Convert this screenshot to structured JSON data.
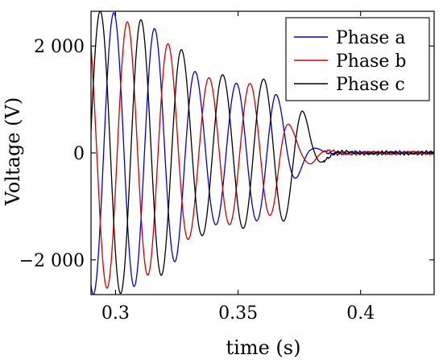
{
  "chart_data": {
    "type": "line",
    "xlabel": "time (s)",
    "ylabel": "Voltage (V)",
    "xlim": [
      0.29,
      0.43
    ],
    "ylim": [
      -2650,
      2650
    ],
    "xticks": [
      0.3,
      0.35,
      0.4
    ],
    "xtick_labels": [
      "0.3",
      "0.35",
      "0.4"
    ],
    "yticks": [
      -2000,
      0,
      2000
    ],
    "ytick_labels": [
      "−2 000",
      "0",
      "2 000"
    ],
    "grid": false,
    "legend_position": "top-right",
    "frequency_hz": 60,
    "series": [
      {
        "name": "Phase a",
        "color": "#0000cc",
        "phase_deg": 105,
        "envelope_t": [
          0.29,
          0.3,
          0.305,
          0.31,
          0.315,
          0.32,
          0.325,
          0.33,
          0.335,
          0.34,
          0.345,
          0.35,
          0.355,
          0.36,
          0.365,
          0.368,
          0.372,
          0.376,
          0.38,
          0.385,
          0.39,
          0.4,
          0.43
        ],
        "envelope_a": [
          2650,
          2620,
          2550,
          2450,
          2350,
          2220,
          2000,
          1650,
          1400,
          1350,
          1320,
          1300,
          1280,
          1260,
          1150,
          900,
          600,
          320,
          120,
          40,
          20,
          15,
          15
        ]
      },
      {
        "name": "Phase b",
        "color": "#cc0000",
        "phase_deg": -15,
        "envelope_t": [
          0.29,
          0.3,
          0.305,
          0.31,
          0.315,
          0.32,
          0.325,
          0.33,
          0.335,
          0.34,
          0.345,
          0.35,
          0.355,
          0.36,
          0.365,
          0.368,
          0.372,
          0.376,
          0.38,
          0.385,
          0.39,
          0.4,
          0.43
        ],
        "envelope_a": [
          2550,
          2520,
          2450,
          2350,
          2250,
          2100,
          1900,
          1600,
          1450,
          1380,
          1350,
          1320,
          1300,
          1280,
          1100,
          800,
          450,
          250,
          200,
          60,
          25,
          15,
          15
        ]
      },
      {
        "name": "Phase c",
        "color": "#000000",
        "phase_deg": -135,
        "envelope_t": [
          0.29,
          0.3,
          0.305,
          0.31,
          0.315,
          0.32,
          0.325,
          0.33,
          0.335,
          0.34,
          0.345,
          0.35,
          0.355,
          0.36,
          0.365,
          0.368,
          0.372,
          0.376,
          0.38,
          0.385,
          0.39,
          0.4,
          0.43
        ],
        "envelope_a": [
          2650,
          2650,
          2600,
          2500,
          2400,
          2250,
          2050,
          1750,
          1550,
          1500,
          1450,
          1420,
          1400,
          1380,
          1380,
          1300,
          1150,
          850,
          400,
          150,
          30,
          15,
          15
        ]
      }
    ]
  }
}
